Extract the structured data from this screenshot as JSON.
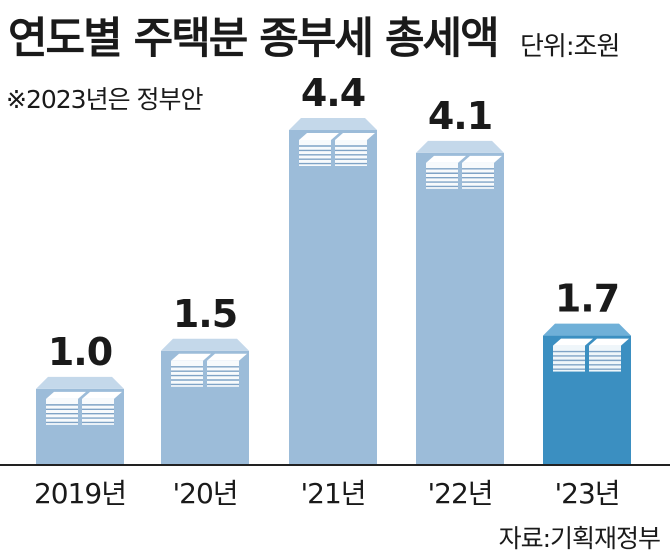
{
  "header": {
    "title": "연도별 주택분 종부세 총세액",
    "unit": "단위:조원",
    "note": "※2023년은 정부안"
  },
  "footer": {
    "source": "자료:기획재정부"
  },
  "colors": {
    "bar": "#9cbcd9",
    "bar_side": "#86a9ca",
    "bar_top": "#c4d8ea",
    "bar_highlight": "#3b8fc1",
    "bar_highlight_side": "#2f79a8",
    "bar_highlight_top": "#6fb0d8",
    "baseline": "#222222"
  },
  "chart_data": {
    "type": "bar",
    "categories": [
      "2019년",
      "'20년",
      "'21년",
      "'22년",
      "'23년"
    ],
    "values": [
      1.0,
      1.5,
      4.4,
      4.1,
      1.7
    ],
    "value_labels": [
      "1.0",
      "1.5",
      "4.4",
      "4.1",
      "1.7"
    ],
    "highlight_index": 4,
    "ylim": [
      0,
      4.4
    ],
    "grid": false
  }
}
